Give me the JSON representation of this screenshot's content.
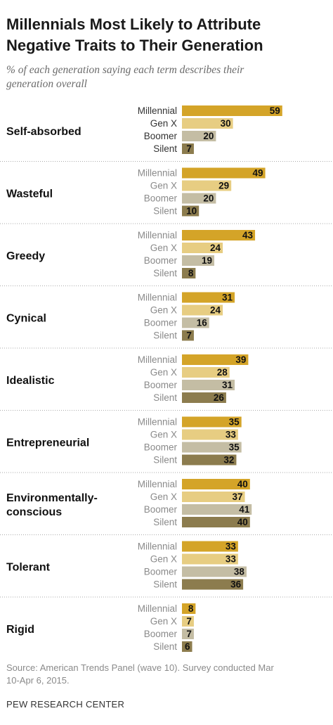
{
  "header": {
    "title_line1": "Millennials Most Likely to Attribute",
    "title_line2": "Negative Traits to Their Generation",
    "subtitle_line1": "% of each generation saying each term describes their",
    "subtitle_line2": "generation overall"
  },
  "footer": {
    "source_line1": "Source: American Trends Panel (wave 10). Survey conducted Mar",
    "source_line2": "10-Apr 6, 2015.",
    "credit": "PEW RESEARCH CENTER"
  },
  "colors": {
    "Millennial": "#d4a428",
    "Gen X": "#e7cd82",
    "Boomer": "#c4bda4",
    "Silent": "#8c7c4e",
    "divider": "#aaaaaa",
    "label_highlight": "#333333",
    "label_muted": "#8a8a8a"
  },
  "chart_data": {
    "type": "bar",
    "orientation": "horizontal",
    "title": "Millennials Most Likely to Attribute Negative Traits to Their Generation",
    "subtitle": "% of each generation saying each term describes their generation overall",
    "series_names": [
      "Millennial",
      "Gen X",
      "Boomer",
      "Silent"
    ],
    "groups": [
      {
        "label_lines": [
          "Self-absorbed"
        ],
        "values": [
          59,
          30,
          20,
          7
        ]
      },
      {
        "label_lines": [
          "Wasteful"
        ],
        "values": [
          49,
          29,
          20,
          10
        ]
      },
      {
        "label_lines": [
          "Greedy"
        ],
        "values": [
          43,
          24,
          19,
          8
        ]
      },
      {
        "label_lines": [
          "Cynical"
        ],
        "values": [
          31,
          24,
          16,
          7
        ]
      },
      {
        "label_lines": [
          "Idealistic"
        ],
        "values": [
          39,
          28,
          31,
          26
        ]
      },
      {
        "label_lines": [
          "Entrepreneurial"
        ],
        "values": [
          35,
          33,
          35,
          32
        ]
      },
      {
        "label_lines": [
          "Environmentally-",
          "conscious"
        ],
        "values": [
          40,
          37,
          41,
          40
        ]
      },
      {
        "label_lines": [
          "Tolerant"
        ],
        "values": [
          33,
          33,
          38,
          36
        ]
      },
      {
        "label_lines": [
          "Rigid"
        ],
        "values": [
          8,
          7,
          7,
          6
        ]
      }
    ]
  }
}
